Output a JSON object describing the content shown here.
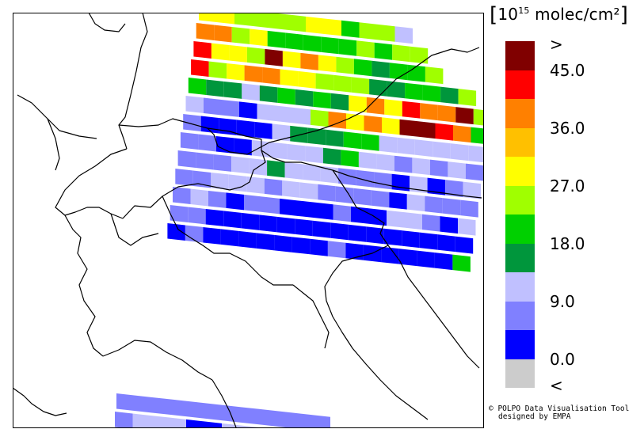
{
  "legend": {
    "title_prefix": "10",
    "title_exponent": "15",
    "title_suffix": " molec/cm²",
    "labels": [
      ">",
      "45.0",
      "36.0",
      "27.0",
      "18.0",
      "9.0",
      "0.0",
      "<"
    ],
    "colors": [
      "#800000",
      "#ff0000",
      "#ff8000",
      "#ffc000",
      "#ffff00",
      "#a0ff00",
      "#00d000",
      "#00963c",
      "#c0c0ff",
      "#8080ff",
      "#0000ff",
      "#cccccc"
    ]
  },
  "credit": {
    "line1": "© POLPO Data Visualisation Tool",
    "line2": "designed by EMPA"
  },
  "swaths": [
    [
      "Y",
      "Y",
      "LG",
      "LG",
      "LG",
      "LG",
      "Y",
      "Y",
      "G",
      "LG",
      "LG",
      "LB"
    ],
    [
      "O",
      "O",
      "LG",
      "Y",
      "G",
      "G",
      "G",
      "G",
      "G",
      "LG",
      "G",
      "LG",
      "LG"
    ],
    [
      "R",
      "Y",
      "Y",
      "LG",
      "DR",
      "Y",
      "O",
      "Y",
      "LG",
      "G",
      "DG",
      "G",
      "G",
      "LG"
    ],
    [
      "R",
      "LG",
      "Y",
      "O",
      "O",
      "Y",
      "Y",
      "LG",
      "LG",
      "LG",
      "DG",
      "DG",
      "G",
      "G",
      "DG",
      "LG"
    ],
    [
      "G",
      "DG",
      "DG",
      "LB",
      "DG",
      "G",
      "DG",
      "G",
      "DG",
      "Y",
      "O",
      "Y",
      "R",
      "O",
      "O",
      "DR",
      "LG"
    ],
    [
      "LB",
      "MB",
      "MB",
      "B",
      "LB",
      "LB",
      "LB",
      "LG",
      "O",
      "Y",
      "O",
      "Y",
      "DR",
      "DR",
      "R",
      "O",
      "G"
    ],
    [
      "MB",
      "B",
      "B",
      "B",
      "B",
      "LB",
      "DG",
      "DG",
      "DG",
      "G",
      "G",
      "LB",
      "LB",
      "LB",
      "LB",
      "LB",
      "LB"
    ],
    [
      "MB",
      "MB",
      "B",
      "B",
      "LB",
      "LB",
      "LB",
      "LB",
      "DG",
      "G",
      "LB",
      "LB",
      "MB",
      "LB",
      "MB",
      "LB",
      "MB"
    ],
    [
      "MB",
      "MB",
      "MB",
      "LB",
      "LB",
      "DG",
      "LB",
      "LB",
      "LB",
      "MB",
      "MB",
      "MB",
      "B",
      "LB",
      "B",
      "MB",
      "LB"
    ],
    [
      "MB",
      "MB",
      "LB",
      "LB",
      "LB",
      "MB",
      "LB",
      "LB",
      "MB",
      "MB",
      "MB",
      "MB",
      "B",
      "LB",
      "MB",
      "MB",
      "MB"
    ],
    [
      "MB",
      "LB",
      "MB",
      "B",
      "MB",
      "MB",
      "B",
      "B",
      "B",
      "MB",
      "B",
      "B",
      "LB",
      "LB",
      "MB",
      "B",
      "LB"
    ],
    [
      "MB",
      "MB",
      "B",
      "B",
      "B",
      "B",
      "B",
      "B",
      "B",
      "B",
      "B",
      "B",
      "B",
      "B",
      "B",
      "B",
      "B"
    ],
    [
      "B",
      "MB",
      "B",
      "B",
      "B",
      "B",
      "B",
      "B",
      "B",
      "MB",
      "B",
      "B",
      "B",
      "B",
      "B",
      "B",
      "G"
    ]
  ],
  "lower_swaths": [
    [
      "MB",
      "MB",
      "MB",
      "MB",
      "MB",
      "MB",
      "MB",
      "MB",
      "MB",
      "MB",
      "MB",
      "MB"
    ],
    [
      "MB",
      "LB",
      "LB",
      "LB",
      "B",
      "B",
      "LB",
      "LB",
      "LB",
      "LB",
      "LB",
      "LB"
    ],
    [
      "LB",
      "LB",
      "MB",
      "MB",
      "LB",
      "LB",
      "LB",
      "LB",
      "LB",
      "LB",
      "LB",
      "LB"
    ]
  ]
}
